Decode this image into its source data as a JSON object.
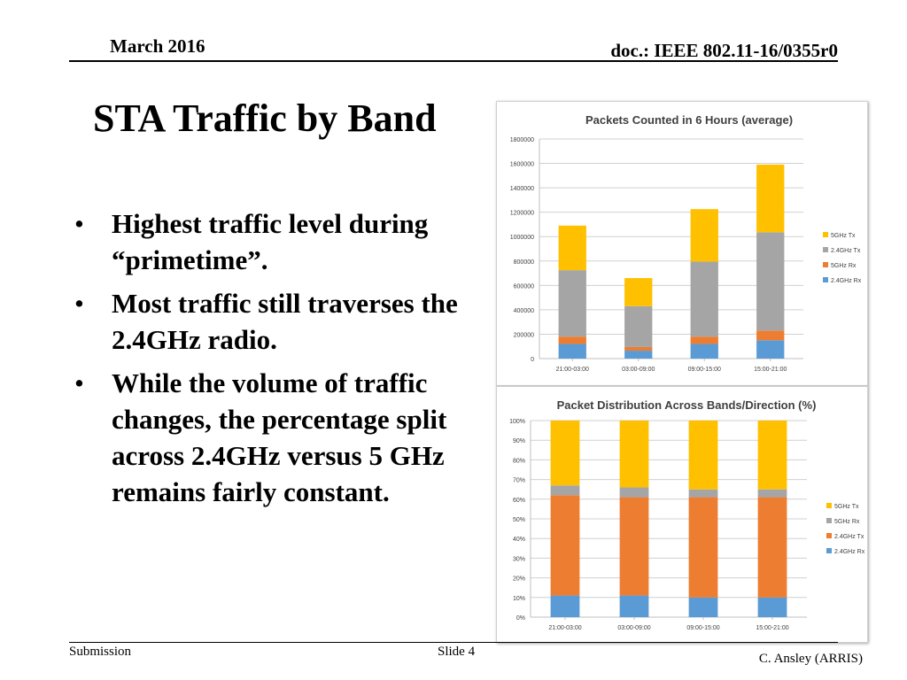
{
  "header": {
    "date": "March 2016",
    "doc": "doc.: IEEE 802.11-16/0355r0"
  },
  "slide": {
    "title": "STA Traffic by Band",
    "bullets": [
      "Highest traffic level during “primetime”.",
      "Most traffic still traverses the 2.4GHz radio.",
      "While the volume of traffic changes, the percentage split across 2.4GHz versus 5 GHz remains fairly constant."
    ]
  },
  "footer": {
    "submission": "Submission",
    "slide": "Slide 4",
    "author": "C. Ansley (ARRIS)"
  },
  "chart_data": [
    {
      "type": "bar",
      "stacked": true,
      "title": "Packets Counted in 6 Hours (average)",
      "xlabel": "",
      "ylabel": "",
      "ylim": [
        0,
        1800000
      ],
      "yticks": [
        0,
        200000,
        400000,
        600000,
        800000,
        1000000,
        1200000,
        1400000,
        1600000,
        1800000
      ],
      "grid": true,
      "legend_position": "right",
      "categories": [
        "21:00-03:00",
        "03:00-09:00",
        "09:00-15:00",
        "15:00-21:00"
      ],
      "series": [
        {
          "name": "2.4GHz Rx",
          "color": "#5b9bd5",
          "values": [
            120000,
            65000,
            120000,
            150000
          ]
        },
        {
          "name": "5GHz Rx",
          "color": "#ed7d31",
          "values": [
            60000,
            30000,
            60000,
            80000
          ]
        },
        {
          "name": "2.4GHz Tx",
          "color": "#a5a5a5",
          "values": [
            545000,
            335000,
            615000,
            805000
          ]
        },
        {
          "name": "5GHz Tx",
          "color": "#ffc000",
          "values": [
            365000,
            230000,
            430000,
            555000
          ]
        }
      ],
      "legend": [
        "5GHz Tx",
        "2.4GHz Tx",
        "5GHz Rx",
        "2.4GHz Rx"
      ]
    },
    {
      "type": "bar",
      "stacked": true,
      "title": "Packet Distribution Across Bands/Direction (%)",
      "xlabel": "",
      "ylabel": "",
      "ylim": [
        0,
        100
      ],
      "yticks": [
        0,
        10,
        20,
        30,
        40,
        50,
        60,
        70,
        80,
        90,
        100
      ],
      "ytick_suffix": "%",
      "grid": true,
      "legend_position": "right",
      "categories": [
        "21:00-03:00",
        "03:00-09:00",
        "09:00-15:00",
        "15:00-21:00"
      ],
      "series": [
        {
          "name": "2.4GHz Rx",
          "color": "#5b9bd5",
          "values": [
            11,
            11,
            10,
            10
          ]
        },
        {
          "name": "2.4GHz Tx",
          "color": "#ed7d31",
          "values": [
            51,
            50,
            51,
            51
          ]
        },
        {
          "name": "5GHz Rx",
          "color": "#a5a5a5",
          "values": [
            5,
            5,
            4,
            4
          ]
        },
        {
          "name": "5GHz Tx",
          "color": "#ffc000",
          "values": [
            33,
            34,
            35,
            35
          ]
        }
      ],
      "legend": [
        "5GHz Tx",
        "5GHz Rx",
        "2.4GHz Tx",
        "2.4GHz Rx"
      ]
    }
  ]
}
